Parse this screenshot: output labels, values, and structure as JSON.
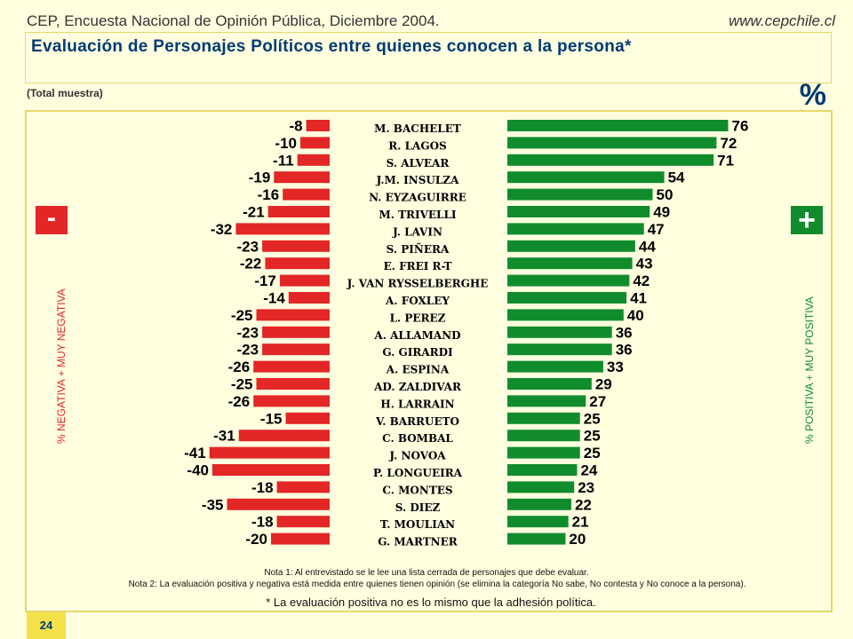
{
  "header": {
    "source": "CEP, Encuesta Nacional de Opinión Pública, Diciembre 2004.",
    "website": "www.cepchile.cl"
  },
  "title": "Evaluación de Personajes Políticos entre quienes conocen a la persona*",
  "subtitle": "(Total muestra)",
  "percent_sign": "%",
  "neg_symbol": "-",
  "pos_symbol": "+",
  "neg_axis_label": "% NEGATIVA + MUY NEGATIVA",
  "pos_axis_label": "% POSITIVA + MUY POSITIVA",
  "notes": {
    "note1": "Nota 1: Al entrevistado se le lee una lista cerrada de personajes que debe evaluar.",
    "note2": "Nota 2: La evaluación positiva y negativa está medida entre quienes tienen opinión (se elimina la categoría No sabe, No contesta y No conoce a la persona).",
    "footnote": "* La evaluación positiva no es lo mismo que la adhesión política."
  },
  "page_number": "24",
  "colors": {
    "negative": "#e32626",
    "positive": "#118c2d",
    "title": "#003b73",
    "border": "#e8d76a"
  },
  "chart_data": {
    "type": "bar",
    "orientation": "horizontal-diverging",
    "categories": [
      "M. BACHELET",
      "R. LAGOS",
      "S. ALVEAR",
      "J.M. INSULZA",
      "N. EYZAGUIRRE",
      "M. TRIVELLI",
      "J. LAVIN",
      "S. PIÑERA",
      "E. FREI R-T",
      "J. VAN RYSSELBERGHE",
      "A. FOXLEY",
      "L. PEREZ",
      "A. ALLAMAND",
      "G. GIRARDI",
      "A. ESPINA",
      "AD. ZALDIVAR",
      "H. LARRAIN",
      "V. BARRUETO",
      "C. BOMBAL",
      "J. NOVOA",
      "P. LONGUEIRA",
      "C. MONTES",
      "S. DIEZ",
      "T. MOULIAN",
      "G. MARTNER"
    ],
    "series": [
      {
        "values": [
          -8,
          -10,
          -11,
          -19,
          -16,
          -21,
          -32,
          -23,
          -22,
          -17,
          -14,
          -25,
          -23,
          -23,
          -26,
          -25,
          -26,
          -15,
          -31,
          -41,
          -40,
          -18,
          -35,
          -18,
          -20
        ]
      },
      {
        "values": [
          76,
          72,
          71,
          54,
          50,
          49,
          47,
          44,
          43,
          42,
          41,
          40,
          36,
          36,
          33,
          29,
          27,
          25,
          25,
          25,
          24,
          23,
          22,
          21,
          20
        ]
      }
    ]
  }
}
